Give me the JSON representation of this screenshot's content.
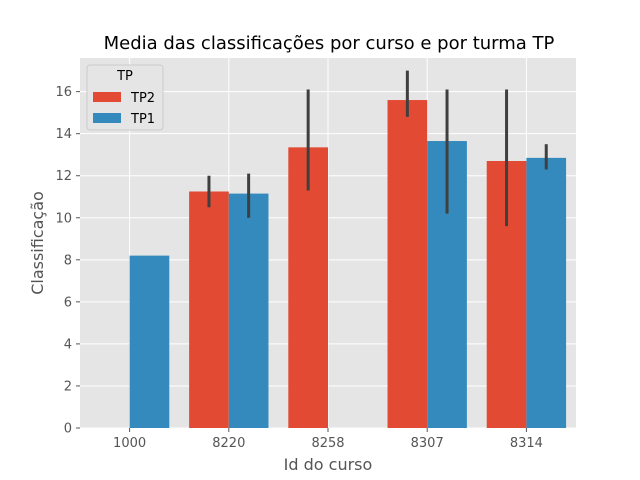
{
  "chart_data": {
    "type": "bar",
    "title": "Media das classificações por curso e por turma TP",
    "xlabel": "Id do curso",
    "ylabel": "Classificação",
    "categories": [
      "1000",
      "8220",
      "8258",
      "8307",
      "8314"
    ],
    "ylim": [
      0,
      17.6
    ],
    "yticks": [
      0,
      2,
      4,
      6,
      8,
      10,
      12,
      14,
      16
    ],
    "grid": true,
    "legend": {
      "title": "TP",
      "placement": "top-left"
    },
    "series": [
      {
        "name": "TP2",
        "color": "#E24A33",
        "values": [
          null,
          11.25,
          13.35,
          15.6,
          12.7
        ],
        "error_low": [
          null,
          10.5,
          11.3,
          14.8,
          9.6
        ],
        "error_high": [
          null,
          12.0,
          16.1,
          17.0,
          16.1
        ]
      },
      {
        "name": "TP1",
        "color": "#348ABD",
        "values": [
          8.2,
          11.15,
          null,
          13.65,
          12.85
        ],
        "error_low": [
          null,
          10.0,
          null,
          10.2,
          12.3
        ],
        "error_high": [
          null,
          12.1,
          null,
          16.1,
          13.5
        ]
      }
    ],
    "error_bar_color": "#3f3f3f",
    "background": "#E5E5E5",
    "grid_color": "#ffffff"
  }
}
